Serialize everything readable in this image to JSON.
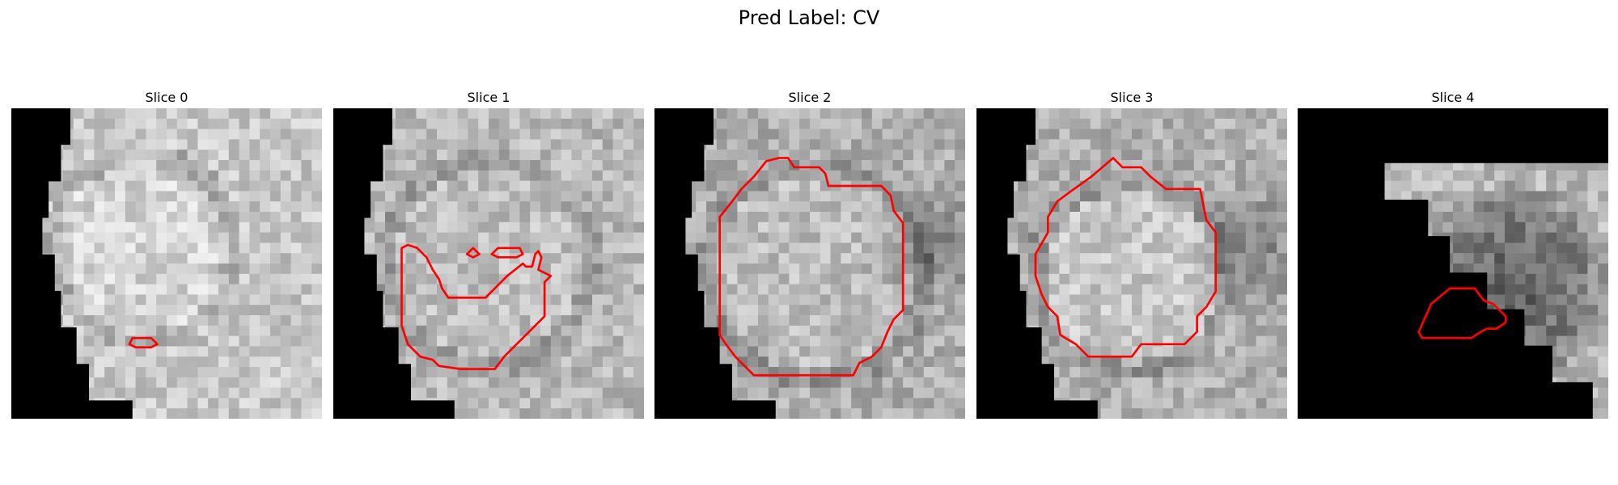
{
  "title": "Pred Label: CV",
  "slices": [
    {
      "label": "Slice 0"
    },
    {
      "label": "Slice 1"
    },
    {
      "label": "Slice 2"
    },
    {
      "label": "Slice 3"
    },
    {
      "label": "Slice 4"
    }
  ],
  "colors": {
    "contour": "#ff0000",
    "background": "#000000"
  }
}
